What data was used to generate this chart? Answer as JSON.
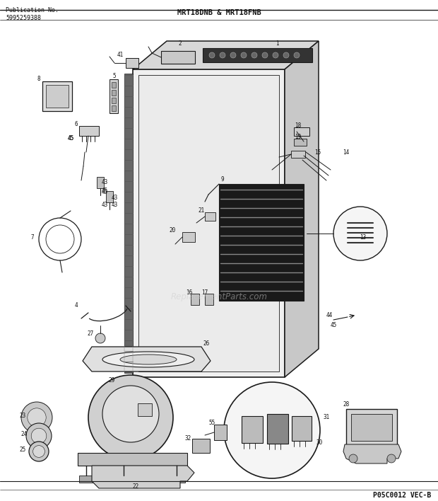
{
  "bg_color": "#ffffff",
  "title_left": "Publication No.\n5995259388",
  "title_center": "MRT18DNB & MRT18FNB",
  "footer_right": "P05C0012 VEC-B",
  "watermark": "ReplacementParts.com",
  "fig_width": 6.2,
  "fig_height": 7.08,
  "dpi": 100
}
